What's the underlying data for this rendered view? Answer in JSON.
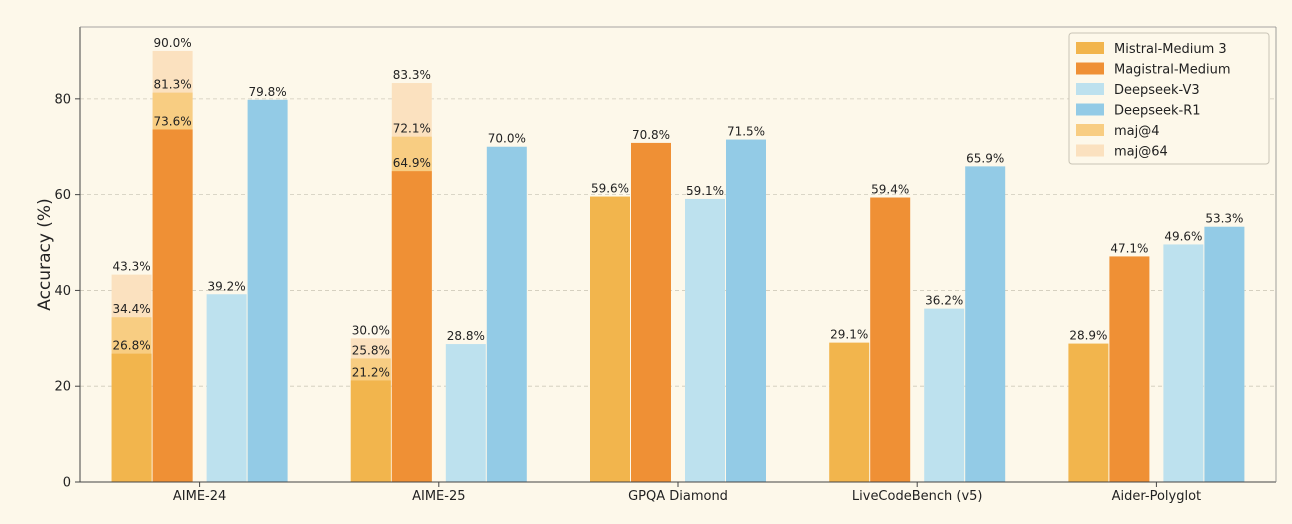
{
  "chart_data": {
    "type": "bar",
    "ylabel": "Accuracy (%)",
    "xlabel": "",
    "ylim": [
      0,
      95
    ],
    "yticks": [
      0,
      20,
      40,
      60,
      80
    ],
    "grid": true,
    "legend_position": "top-right",
    "categories": [
      "AIME-24",
      "AIME-25",
      "GPQA Diamond",
      "LiveCodeBench (v5)",
      "Aider-Polyglot"
    ],
    "series": [
      {
        "name": "Mistral-Medium 3",
        "color": "#f2b54d",
        "values": [
          26.8,
          21.2,
          59.6,
          29.1,
          28.9
        ],
        "labels": [
          "26.8%",
          "21.2%",
          "59.6%",
          "29.1%",
          "28.9%"
        ]
      },
      {
        "name": "Magistral-Medium",
        "color": "#ef9035",
        "values": [
          73.6,
          64.9,
          70.8,
          59.4,
          47.1
        ],
        "labels": [
          "73.6%",
          "64.9%",
          "70.8%",
          "59.4%",
          "47.1%"
        ]
      },
      {
        "name": "Deepseek-V3",
        "color": "#bde1ee",
        "values": [
          39.2,
          28.8,
          59.1,
          36.2,
          49.6
        ],
        "labels": [
          "39.2%",
          "28.8%",
          "59.1%",
          "36.2%",
          "49.6%"
        ]
      },
      {
        "name": "Deepseek-R1",
        "color": "#93cbe6",
        "values": [
          79.8,
          70.0,
          71.5,
          65.9,
          53.3
        ],
        "labels": [
          "79.8%",
          "70.0%",
          "71.5%",
          "65.9%",
          "53.3%"
        ]
      }
    ],
    "overlays": [
      {
        "name": "maj@4",
        "color": "#f8cd82",
        "entries": [
          {
            "category": "AIME-24",
            "series": "Mistral-Medium 3",
            "value": 34.4,
            "label": "34.4%"
          },
          {
            "category": "AIME-24",
            "series": "Magistral-Medium",
            "value": 81.3,
            "label": "81.3%"
          },
          {
            "category": "AIME-25",
            "series": "Mistral-Medium 3",
            "value": 25.8,
            "label": "25.8%"
          },
          {
            "category": "AIME-25",
            "series": "Magistral-Medium",
            "value": 72.1,
            "label": "72.1%"
          }
        ]
      },
      {
        "name": "maj@64",
        "color": "#fbe1bf",
        "entries": [
          {
            "category": "AIME-24",
            "series": "Mistral-Medium 3",
            "value": 43.3,
            "label": "43.3%"
          },
          {
            "category": "AIME-24",
            "series": "Magistral-Medium",
            "value": 90.0,
            "label": "90.0%"
          },
          {
            "category": "AIME-25",
            "series": "Mistral-Medium 3",
            "value": 30.0,
            "label": "30.0%"
          },
          {
            "category": "AIME-25",
            "series": "Magistral-Medium",
            "value": 83.3,
            "label": "83.3%"
          }
        ]
      }
    ],
    "legend": [
      "Mistral-Medium 3",
      "Magistral-Medium",
      "Deepseek-V3",
      "Deepseek-R1",
      "maj@4",
      "maj@64"
    ]
  }
}
